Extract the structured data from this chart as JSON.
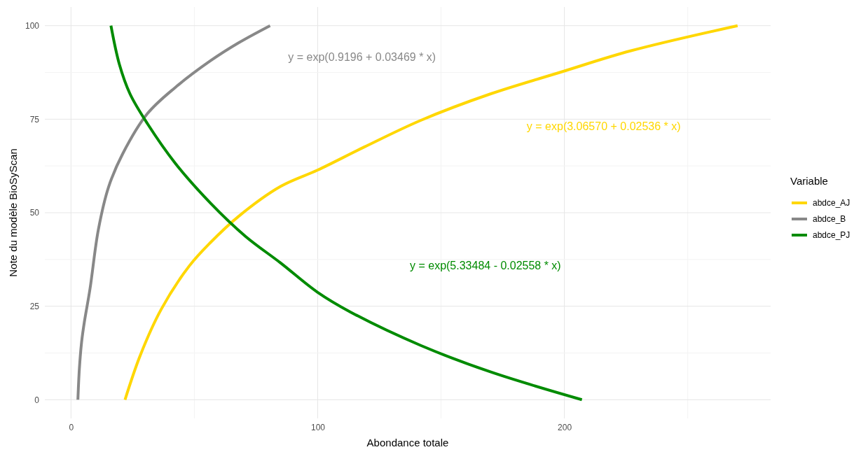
{
  "chart_data": {
    "type": "line",
    "xlabel": "Abondance totale",
    "ylabel": "Note du modèle BioSyScan",
    "legend_title": "Variable",
    "legend": "right",
    "grid": true,
    "line_style": "solid",
    "marker": "none",
    "xlim": [
      -10.6,
      283.6
    ],
    "ylim": [
      -5,
      105
    ],
    "xticks": [
      0,
      {
        "value": 50,
        "label": null
      },
      100,
      {
        "value": 150,
        "label": null
      },
      200,
      {
        "value": 250,
        "label": null
      }
    ],
    "yticks": [
      0,
      {
        "value": 12.5,
        "label": null
      },
      25,
      {
        "value": 37.5,
        "label": null
      },
      50,
      {
        "value": 62.5,
        "label": null
      },
      75,
      {
        "value": 87.5,
        "label": null
      },
      100
    ],
    "series": [
      {
        "name": "abdce_AJ",
        "color": "#ffd700",
        "x": [
          21.9,
          28.1,
          36.6,
          48,
          56.5,
          67.9,
          84.9,
          100,
          119,
          141.8,
          170.2,
          198.6,
          227,
          270.2
        ],
        "values": [
          0,
          11.9,
          24.2,
          35.8,
          42,
          49,
          57,
          61.4,
          67.6,
          74.7,
          81.8,
          87.6,
          93.3,
          100
        ]
      },
      {
        "name": "abdce_B",
        "color": "#888888",
        "x": [
          2.8,
          3.4,
          4.3,
          5.4,
          7.7,
          11.1,
          15.3,
          21,
          31,
          42.3,
          56.5,
          67.9,
          80.7
        ],
        "values": [
          0,
          8.3,
          15.4,
          20.7,
          29.6,
          45.5,
          57,
          65.8,
          76.5,
          83.5,
          90.6,
          95.4,
          100
        ]
      },
      {
        "name": "abdce_PJ",
        "color": "#008b00",
        "x": [
          16.2,
          19.6,
          23.9,
          31,
          42.3,
          56.5,
          70.7,
          84.9,
          100,
          113.4,
          141.8,
          170.2,
          207.1
        ],
        "values": [
          100,
          89.7,
          81.8,
          73.8,
          63.2,
          52.6,
          43.7,
          36.6,
          28.7,
          23.4,
          14.5,
          7.4,
          0
        ]
      }
    ],
    "annotations": [
      "y = exp(3.06570 + 0.02536 * x)",
      "y = exp(0.9196 + 0.03469 * x)",
      "y = exp(5.33484 - 0.02558 * x)"
    ]
  }
}
